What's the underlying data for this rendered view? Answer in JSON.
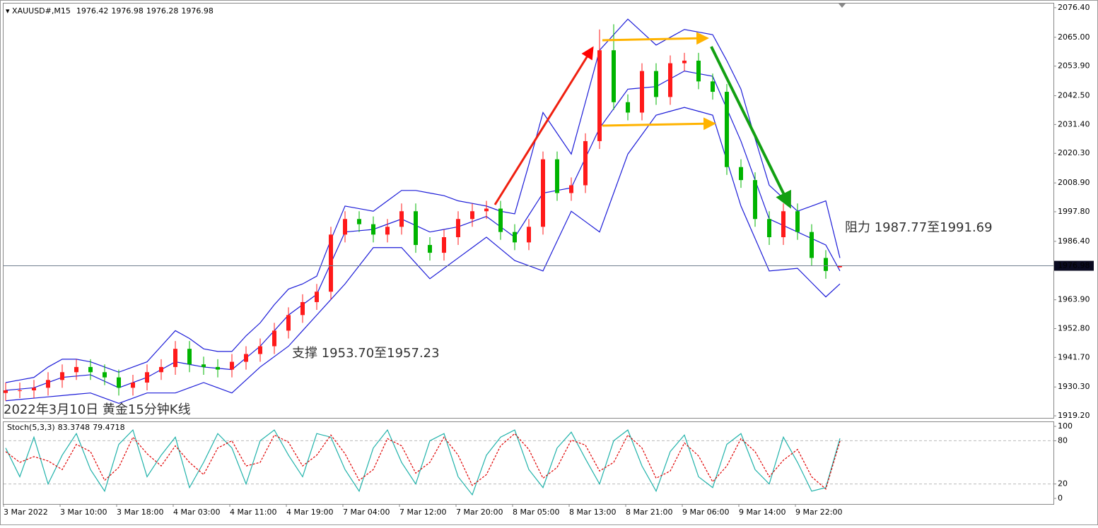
{
  "chart_data": [
    {
      "type": "candlestick",
      "symbol": "XAUUSD#,M15",
      "annotations": [
        "支撑 1953.70至1957.23",
        "阻力 1987.77至1991.69",
        "2022年3月10日 黄金15分钟K线"
      ],
      "categories": [
        "3 Mar 2022",
        null,
        null,
        null,
        "3 Mar 10:00",
        null,
        null,
        null,
        "3 Mar 18:00",
        null,
        null,
        null,
        "4 Mar 03:00",
        null,
        null,
        null,
        "4 Mar 11:00",
        null,
        null,
        null,
        "4 Mar 19:00",
        null,
        null,
        null,
        "7 Mar 04:00",
        null,
        null,
        null,
        "7 Mar 12:00",
        null,
        null,
        null,
        "7 Mar 20:00",
        null,
        null,
        null,
        "8 Mar 05:00",
        null,
        null,
        null,
        "8 Mar 13:00",
        null,
        null,
        null,
        "8 Mar 21:00",
        null,
        null,
        null,
        "9 Mar 06:00",
        null,
        null,
        null,
        "9 Mar 14:00",
        null,
        null,
        null,
        "9 Mar 22:00",
        null,
        null,
        null
      ],
      "open": [
        1928,
        1929,
        1929,
        1930,
        1933,
        1936,
        1938,
        1936,
        1934,
        1930,
        1932,
        1936,
        1938,
        1945,
        1939,
        1938,
        1937,
        1940,
        1943,
        1946,
        1952,
        1958,
        1963,
        1967,
        1989,
        1995,
        1993,
        1989,
        1992,
        1998,
        1985,
        1982,
        1988,
        1995,
        1998,
        1999,
        1990,
        1986,
        1992,
        2018,
        2005,
        2008,
        2025,
        2060,
        2040,
        2036,
        2052,
        2042,
        2055,
        2056,
        2048,
        2044,
        2015,
        2010,
        1995,
        1988,
        1998,
        1990,
        1980,
        1976.42
      ],
      "high": [
        1932,
        1932,
        1933,
        1936,
        1939,
        1941,
        1941,
        1939,
        1937,
        1935,
        1939,
        1941,
        1948,
        1948,
        1942,
        1941,
        1943,
        1946,
        1949,
        1955,
        1961,
        1966,
        1970,
        1992,
        1998,
        1998,
        1996,
        1995,
        2001,
        2001,
        1988,
        1991,
        1998,
        2001,
        2002,
        2002,
        1993,
        1995,
        2021,
        2021,
        2011,
        2028,
        2068,
        2070,
        2043,
        2055,
        2055,
        2058,
        2059,
        2059,
        2051,
        2047,
        2018,
        2013,
        1998,
        2001,
        2001,
        1993,
        1983,
        1976.98
      ],
      "low": [
        1925,
        1926,
        1926,
        1927,
        1930,
        1933,
        1933,
        1931,
        1927,
        1927,
        1929,
        1933,
        1935,
        1936,
        1935,
        1934,
        1934,
        1937,
        1940,
        1943,
        1949,
        1955,
        1960,
        1964,
        1986,
        1990,
        1986,
        1986,
        1989,
        1982,
        1979,
        1979,
        1985,
        1992,
        1995,
        1987,
        1983,
        1983,
        1989,
        2002,
        2002,
        2005,
        2022,
        2037,
        2033,
        2033,
        2039,
        2039,
        2052,
        2045,
        2041,
        2012,
        2007,
        1992,
        1985,
        1985,
        1987,
        1977,
        1972,
        1976.28
      ],
      "close": [
        1929,
        1929,
        1930,
        1933,
        1936,
        1938,
        1936,
        1934,
        1930,
        1932,
        1936,
        1938,
        1945,
        1939,
        1938,
        1937,
        1940,
        1943,
        1946,
        1952,
        1958,
        1963,
        1967,
        1989,
        1995,
        1993,
        1989,
        1992,
        1998,
        1985,
        1982,
        1988,
        1995,
        1998,
        1999,
        1990,
        1986,
        1992,
        2018,
        2005,
        2008,
        2025,
        2060,
        2040,
        2036,
        2052,
        2042,
        2055,
        2056,
        2048,
        2044,
        2015,
        2010,
        1995,
        1988,
        1998,
        1990,
        1980,
        1975,
        1976.98
      ],
      "up_color": "#ff1a1a",
      "down_color": "#00b400",
      "bands": [
        {
          "color": "#1c1cd8",
          "values": [
            1932,
            1933,
            1934,
            1938,
            1941,
            1941,
            1940,
            1938,
            1936,
            1938,
            1940,
            1946,
            1952,
            1949,
            1945,
            1944,
            1944,
            1950,
            1955,
            1962,
            1968,
            1970,
            1973,
            1987,
            2000,
            1999,
            1998,
            2002,
            2006,
            2006,
            2005,
            2004,
            2002,
            2001,
            2000,
            1998,
            1997,
            2016,
            2036,
            2028,
            2020,
            2040,
            2060,
            2066,
            2072,
            2067,
            2062,
            2065,
            2068,
            2067,
            2066,
            2056,
            2045,
            2026,
            2008,
            2003,
            1998,
            2000,
            2002,
            1980
          ]
        },
        {
          "color": "#1c1cd8",
          "values": [
            1929,
            1929.5,
            1930,
            1932,
            1934,
            1934.5,
            1935,
            1932.5,
            1930,
            1932,
            1934,
            1937,
            1940,
            1939,
            1938,
            1937.5,
            1937,
            1941.5,
            1946,
            1952,
            1958,
            1962,
            1966,
            1978,
            1990,
            1990.5,
            1991,
            1993,
            1995,
            1992.5,
            1990,
            1991,
            1992,
            1994,
            1996,
            1992,
            1988,
            1996.5,
            2005,
            2006,
            2007,
            2018.5,
            2030,
            2037.5,
            2045,
            2045.5,
            2046,
            2049,
            2052,
            2051,
            2050,
            2037.5,
            2025,
            2010,
            1995,
            1992.5,
            1990,
            1987.5,
            1985,
            1975
          ]
        },
        {
          "color": "#1c1cd8",
          "values": [
            1925,
            1925.5,
            1926,
            1926.5,
            1927,
            1927.5,
            1928,
            1926,
            1924,
            1926,
            1928,
            1928,
            1928,
            1930,
            1932,
            1930,
            1928,
            1933,
            1938,
            1942,
            1946,
            1952,
            1958,
            1964,
            1970,
            1977,
            1984,
            1984,
            1984,
            1978,
            1972,
            1976,
            1980,
            1984,
            1988,
            1983.5,
            1979,
            1977,
            1975,
            1986.5,
            1998,
            1994,
            1990,
            2005,
            2020,
            2027.5,
            2035,
            2036.5,
            2038,
            2036.5,
            2035,
            2017.5,
            2000,
            1987.5,
            1975,
            1975.5,
            1976,
            1970.5,
            1965,
            1970
          ]
        }
      ],
      "ylim": [
        1918.4,
        2078.0
      ],
      "yticks": [
        {
          "value": 2076.4,
          "label": "2076.40"
        },
        {
          "value": 2065,
          "label": "2065.00"
        },
        {
          "value": 2053.9,
          "label": "2053.90"
        },
        {
          "value": 2042.5,
          "label": "2042.50"
        },
        {
          "value": 2031.4,
          "label": "2031.40"
        },
        {
          "value": 2020.3,
          "label": "2020.30"
        },
        {
          "value": 2008.9,
          "label": "2008.90"
        },
        {
          "value": 1997.8,
          "label": "1997.80"
        },
        {
          "value": 1986.4,
          "label": "1986.40"
        },
        {
          "value": 1963.9,
          "label": "1963.90"
        },
        {
          "value": 1952.8,
          "label": "1952.80"
        },
        {
          "value": 1941.7,
          "label": "1941.70"
        },
        {
          "value": 1930.3,
          "label": "1930.30"
        },
        {
          "value": 1919.2,
          "label": "1919.20"
        }
      ],
      "grid": false
    },
    {
      "type": "line",
      "title": "Stoch(5,3,3)",
      "series": [
        {
          "color": "#20b2aa",
          "dash": false,
          "values": [
            70,
            30,
            85,
            20,
            60,
            90,
            40,
            10,
            75,
            95,
            30,
            60,
            85,
            15,
            50,
            90,
            70,
            20,
            80,
            95,
            60,
            30,
            90,
            85,
            40,
            10,
            70,
            95,
            50,
            20,
            80,
            90,
            30,
            5,
            60,
            85,
            95,
            40,
            15,
            70,
            92,
            55,
            20,
            80,
            95,
            45,
            10,
            65,
            88,
            30,
            15,
            75,
            90,
            40,
            20,
            85,
            50,
            10,
            15,
            83.3748
          ]
        },
        {
          "color": "#e00000",
          "dash": true,
          "values": [
            65,
            50,
            58,
            52,
            40,
            75,
            65,
            25,
            43,
            85,
            62,
            45,
            73,
            50,
            33,
            70,
            80,
            45,
            50,
            88,
            78,
            45,
            60,
            88,
            62,
            25,
            40,
            83,
            73,
            35,
            50,
            85,
            60,
            18,
            33,
            73,
            90,
            68,
            28,
            43,
            81,
            74,
            38,
            50,
            88,
            70,
            28,
            38,
            77,
            59,
            23,
            45,
            83,
            65,
            30,
            53,
            68,
            30,
            13,
            79.4718
          ]
        }
      ],
      "ylim": [
        -7.8,
        105.9
      ],
      "yticks": [
        0,
        20,
        80,
        100
      ],
      "levels": [
        20,
        80
      ]
    }
  ]
}
